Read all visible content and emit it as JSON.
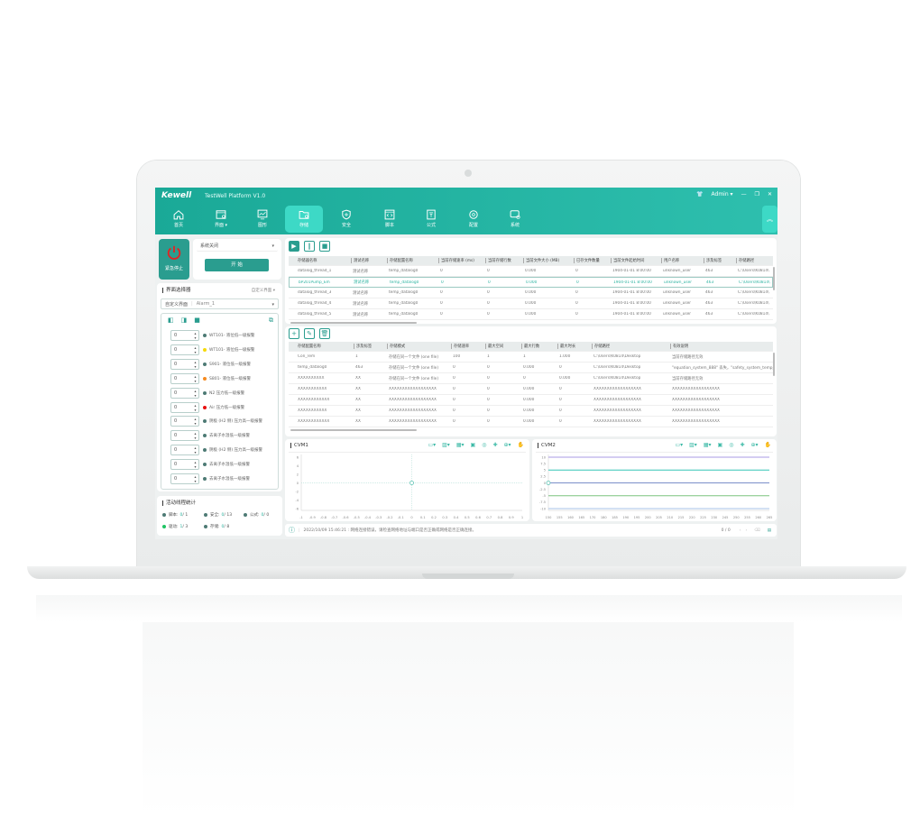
{
  "app": {
    "logo": "Kewell",
    "title": "TestWell Platform V1.0",
    "user": "Admin ▾",
    "icons": [
      "shirt-icon",
      "minimize-icon",
      "restore-icon",
      "close-icon"
    ]
  },
  "nav": [
    {
      "label": "首页",
      "icon": "home-icon"
    },
    {
      "label": "界面 ▾",
      "icon": "interface-icon"
    },
    {
      "label": "图形",
      "icon": "chart-icon"
    },
    {
      "label": "存储",
      "icon": "storage-icon",
      "active": true
    },
    {
      "label": "安全",
      "icon": "shield-icon"
    },
    {
      "label": "脚本",
      "icon": "script-icon"
    },
    {
      "label": "公式",
      "icon": "formula-icon"
    },
    {
      "label": "配置",
      "icon": "config-icon"
    },
    {
      "label": "系统",
      "icon": "system-icon"
    }
  ],
  "control": {
    "emergency": "紧急停止",
    "system_state": "系统关闭",
    "start": "开 始"
  },
  "selector": {
    "title": "界面选择器",
    "mode": "自定义界面",
    "sel_label": "自定义界面",
    "sel_value": "Alarm_1",
    "alarms": [
      {
        "v": "0",
        "t": "WT101- 液位低一级报警",
        "c": "#4d7a74"
      },
      {
        "v": "0",
        "t": "WT101- 液位低一级报警",
        "c": "#f5d90a"
      },
      {
        "v": "0",
        "t": "S901- 液位低一级报警",
        "c": "#4d7a74"
      },
      {
        "v": "0",
        "t": "S801- 液位低一级报警",
        "c": "#f58a1f"
      },
      {
        "v": "0",
        "t": "N2 压力低一级报警",
        "c": "#4d7a74"
      },
      {
        "v": "0",
        "t": "Air 压力低一级报警",
        "c": "#e81010"
      },
      {
        "v": "0",
        "t": "阴极 (H2 侧) 压力高一级报警",
        "c": "#4d7a74"
      },
      {
        "v": "0",
        "t": "去离子水温低一级报警",
        "c": "#4d7a74"
      },
      {
        "v": "0",
        "t": "阴极 (H2 侧) 压力高一级报警",
        "c": "#4d7a74"
      },
      {
        "v": "0",
        "t": "去离子水温低一级报警",
        "c": "#4d7a74"
      },
      {
        "v": "0",
        "t": "去离子水温低一级报警",
        "c": "#4d7a74"
      }
    ]
  },
  "threads": {
    "title": "活动线程统计",
    "items": [
      {
        "k": "脚本:",
        "a": "0",
        "b": " / 1",
        "c": "#4d7a74"
      },
      {
        "k": "安全:",
        "a": "0",
        "b": " / 13",
        "c": "#4d7a74"
      },
      {
        "k": "公式:",
        "a": "0",
        "b": " / 0",
        "c": "#4d7a74"
      },
      {
        "k": "驱动:",
        "a": "1",
        "b": " / 3",
        "c": "#1ec463"
      },
      {
        "k": "存储:",
        "a": "0",
        "b": " / 8",
        "c": "#4d7a74"
      }
    ]
  },
  "storage_table": {
    "columns": [
      "存储器名称",
      "测试名称",
      "存储配置名称",
      "当前存储速率 (ms)",
      "当前存储行数",
      "当前文件大小 (MB)",
      "已存文件数量",
      "当前文件起始时间",
      "用户名称",
      "涉及标签",
      "存储路径"
    ],
    "rows": [
      [
        "datalog_thread_1",
        "测试名称",
        "temp_datalog0",
        "0",
        "0",
        "0.000",
        "0",
        "1904-01-01 8:00:00",
        "unknown_user",
        "463",
        "C:\\Users\\K0814\\"
      ],
      [
        "bP201Pump_Em",
        "测试名称",
        "temp_datalog0",
        "0",
        "0",
        "0.000",
        "0",
        "1904-01-01 8:00:00",
        "unknown_user",
        "463",
        "C:\\Users\\K0814\\"
      ],
      [
        "datalog_thread_3",
        "测试名称",
        "temp_datalog0",
        "0",
        "0",
        "0.000",
        "0",
        "1904-01-01 8:00:00",
        "unknown_user",
        "463",
        "C:\\Users\\K0814\\"
      ],
      [
        "datalog_thread_4",
        "测试名称",
        "temp_datalog0",
        "0",
        "0",
        "0.000",
        "0",
        "1904-01-01 8:00:00",
        "unknown_user",
        "463",
        "C:\\Users\\K0814\\"
      ],
      [
        "datalog_thread_5",
        "测试名称",
        "temp_datalog0",
        "0",
        "0",
        "0.000",
        "0",
        "1904-01-01 8:00:00",
        "unknown_user",
        "463",
        "C:\\Users\\K0814\\"
      ]
    ],
    "selected_row": 1
  },
  "config_table": {
    "columns": [
      "存储配置名称",
      "涉及标签",
      "存储模式",
      "存储速率",
      "最大空间",
      "最大行数",
      "最大时长",
      "存储路径",
      "有效说明"
    ],
    "rows": [
      [
        "Con_Tem",
        "1",
        "存储在同一个文件 (one file)",
        "100",
        "1",
        "1",
        "1.000",
        "C:\\Users\\K0814\\Desktop",
        "当前存储路径无效"
      ],
      [
        "temp_datalog0",
        "463",
        "存储在同一个文件 (one file)",
        "0",
        "0",
        "0.000",
        "0",
        "C:\\Users\\K0814\\Desktop",
        "\"equation_system_888\" 丢失，\"safety_system_temp_"
      ],
      [
        "XXXXXXXXXX",
        "XX",
        "存储在同一个文件 (one file)",
        "0",
        "0",
        "0",
        "0.000",
        "C:\\Users\\K0814\\Desktop",
        "当前存储路径无效"
      ],
      [
        "XXXXXXXXXXX",
        "XX",
        "XXXXXXXXXXXXXXXXXX",
        "0",
        "0",
        "0.000",
        "0",
        "XXXXXXXXXXXXXXXXXX",
        "XXXXXXXXXXXXXXXXXX"
      ],
      [
        "XXXXXXXXXXXX",
        "XX",
        "XXXXXXXXXXXXXXXXXX",
        "0",
        "0",
        "0.000",
        "0",
        "XXXXXXXXXXXXXXXXXX",
        "XXXXXXXXXXXXXXXXXX"
      ],
      [
        "XXXXXXXXXXX",
        "XX",
        "XXXXXXXXXXXXXXXXXX",
        "0",
        "0",
        "0.000",
        "0",
        "XXXXXXXXXXXXXXXXXX",
        "XXXXXXXXXXXXXXXXXX"
      ],
      [
        "XXXXXXXXXXXX",
        "XX",
        "XXXXXXXXXXXXXXXXXX",
        "0",
        "0",
        "0.000",
        "0",
        "XXXXXXXXXXXXXXXXXX",
        "XXXXXXXXXXXXXXXXXX"
      ]
    ]
  },
  "chart_data": [
    {
      "type": "line",
      "title": "CVM1",
      "xlim": [
        -1,
        1
      ],
      "ylim": [
        -6,
        6
      ],
      "xticks": [
        "-1",
        "-0.9",
        "-0.8",
        "-0.7",
        "-0.6",
        "-0.5",
        "-0.4",
        "-0.3",
        "-0.2",
        "-0.1",
        "0",
        "0.1",
        "0.2",
        "0.3",
        "0.4",
        "0.5",
        "0.6",
        "0.7",
        "0.8",
        "0.9",
        "1"
      ],
      "yticks": [
        "6",
        "4",
        "2",
        "0",
        "-2",
        "-4",
        "-6"
      ],
      "cursor": [
        0,
        0
      ],
      "series": []
    },
    {
      "type": "line",
      "title": "CVM2",
      "xlim": [
        150,
        265
      ],
      "ylim": [
        -10,
        10
      ],
      "xticks": [
        "150",
        "155",
        "160",
        "165",
        "170",
        "180",
        "185",
        "190",
        "195",
        "200",
        "205",
        "210",
        "215",
        "220",
        "225",
        "230",
        "245",
        "250",
        "255",
        "260",
        "265"
      ],
      "yticks": [
        "10",
        "7.5",
        "5",
        "2.5",
        "0",
        "-2.5",
        "-5",
        "-7.5",
        "-10"
      ],
      "cursor": [
        150,
        0
      ],
      "series": [
        {
          "y": 10,
          "color": "#a99be6"
        },
        {
          "y": 5,
          "color": "#33c6b6"
        },
        {
          "y": 0,
          "color": "#7b8fc9"
        },
        {
          "y": -5,
          "color": "#7cc47f"
        },
        {
          "y": -10,
          "color": "#a9c3ea"
        }
      ]
    }
  ],
  "status": {
    "message": "2022/10/09 15:46:21 : 网络连接错误，请检查网络地址与端口是否正确或网络是否正确连接。",
    "page": "0 / 0"
  }
}
